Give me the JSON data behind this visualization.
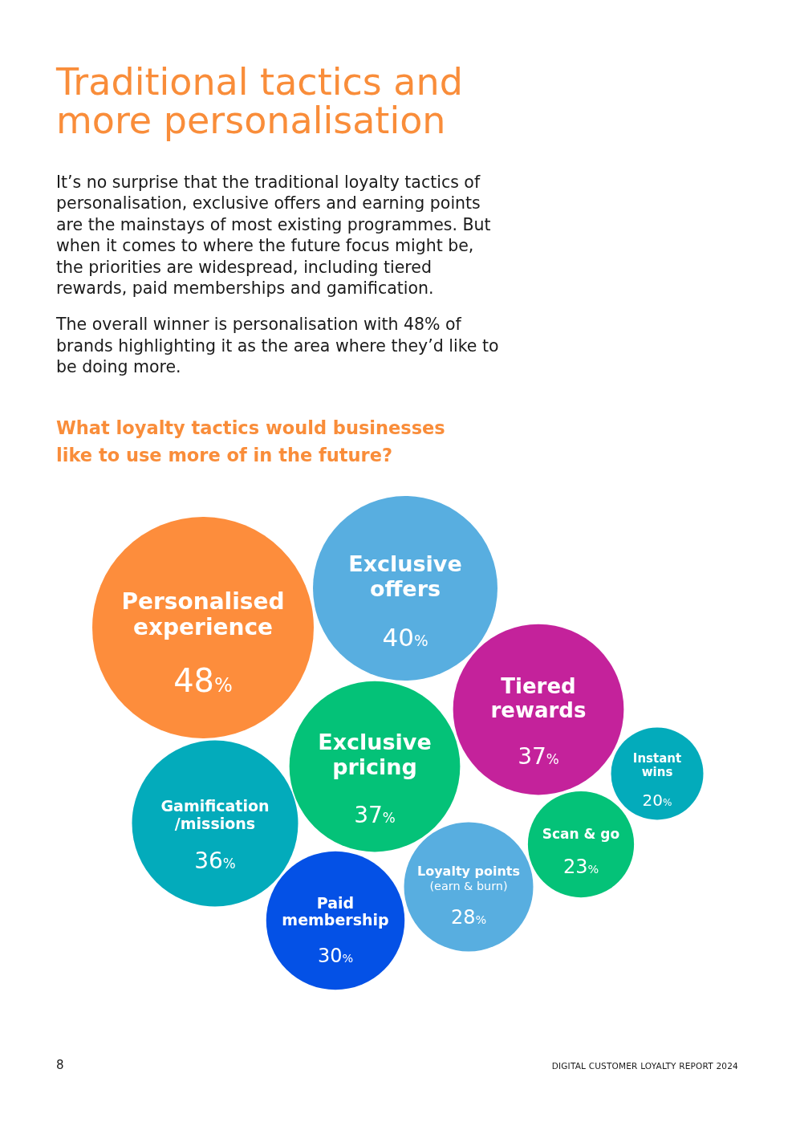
{
  "chart_data": {
    "type": "other",
    "title": "Traditional tactics and more personalisation",
    "subtitle": "What loyalty tactics would businesses like to use more of in the future?",
    "annotations": [
      "It’s no surprise that the traditional loyalty tactics of personalisation, exclusive offers and earning points are the mainstays of most existing programmes. But when it comes to where the future focus might be, the priorities are widespread, including tiered rewards, paid memberships and gamification.",
      "The overall winner is personalisation with 48% of brands highlighting it as the area where they’d like to be doing more.",
      "8",
      "DIGITAL CUSTOMER LOYALTY REPORT 2024"
    ],
    "categories": [
      "Personalised experience",
      "Exclusive offers",
      "Tiered rewards",
      "Exclusive pricing",
      "Gamification /missions",
      "Paid membership",
      "Loyalty points (earn & burn)",
      "Scan & go",
      "Instant wins"
    ],
    "values": [
      48,
      40,
      37,
      37,
      36,
      30,
      28,
      23,
      20
    ],
    "value_labels": [
      "48%",
      "40%",
      "37%",
      "37%",
      "36%",
      "30%",
      "28%",
      "23%",
      "20%"
    ],
    "colors": [
      "#fd8d3c",
      "#58aee0",
      "#c4229b",
      "#04c278",
      "#03abbb",
      "#0451e6",
      "#58aee0",
      "#04c278",
      "#03abbb"
    ]
  }
}
